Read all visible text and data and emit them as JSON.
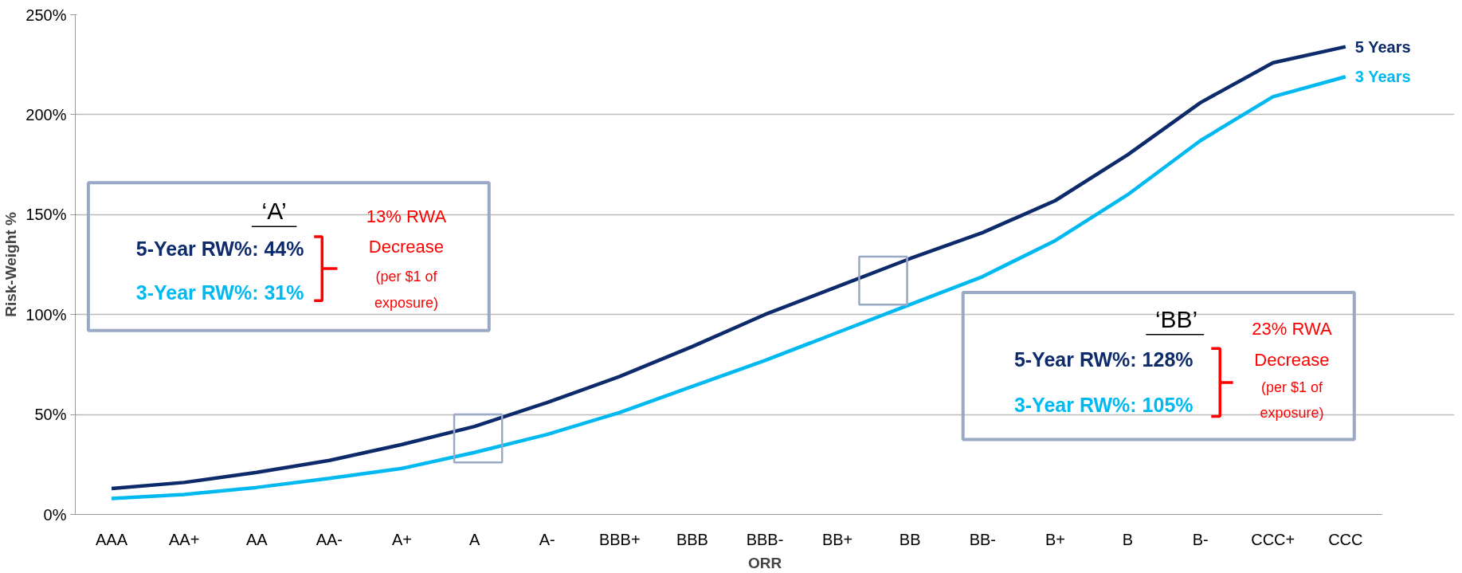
{
  "chart_data": {
    "type": "line",
    "xlabel": "ORR",
    "ylabel": "Risk-Weight %",
    "categories": [
      "AAA",
      "AA+",
      "AA",
      "AA-",
      "A+",
      "A",
      "A-",
      "BBB+",
      "BBB",
      "BBB-",
      "BB+",
      "BB",
      "BB-",
      "B+",
      "B",
      "B-",
      "CCC+",
      "CCC"
    ],
    "series": [
      {
        "name": "5  Years",
        "color": "#0d2a6b",
        "values": [
          13,
          16,
          21,
          27,
          35,
          44,
          56,
          69,
          84,
          100,
          114,
          128,
          141,
          157,
          180,
          206,
          226,
          234
        ]
      },
      {
        "name": "3  Years",
        "color": "#00b9f1",
        "values": [
          8,
          10,
          13.5,
          18,
          23,
          31,
          40,
          51,
          64,
          77,
          91,
          105,
          119,
          137,
          160,
          187,
          209,
          219
        ]
      }
    ],
    "ylim": [
      0,
      250
    ],
    "yticks": [
      {
        "value": 0,
        "label": "0%"
      },
      {
        "value": 50,
        "label": "50%"
      },
      {
        "value": 100,
        "label": "100%"
      },
      {
        "value": 150,
        "label": "150%"
      },
      {
        "value": 200,
        "label": "200%"
      },
      {
        "value": 250,
        "label": "250%"
      }
    ],
    "grid": "y",
    "legend": false,
    "marker": "none",
    "line_style": "solid",
    "annotations": [
      "‘A’",
      "5-Year RW%: 44%",
      "3-Year RW%: 31%",
      "13% RWA",
      "Decrease",
      "(per $1 of",
      "exposure)",
      "‘BB’",
      "5-Year RW%: 128%",
      "3-Year RW%: 105%",
      "23% RWA",
      "Decrease",
      "(per $1 of",
      "exposure)"
    ]
  }
}
